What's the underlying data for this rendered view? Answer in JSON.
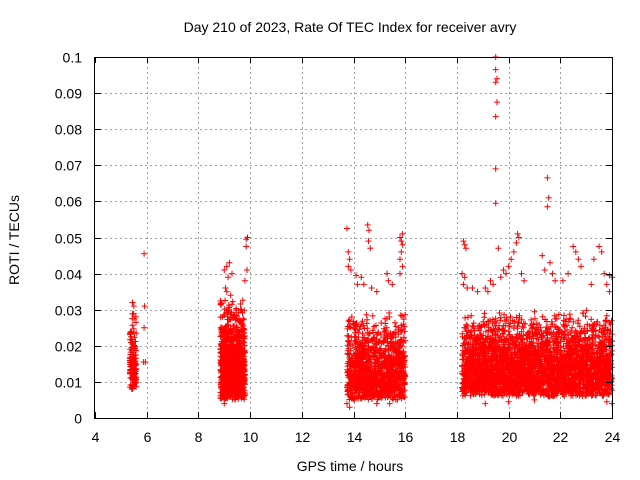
{
  "chart_data": {
    "type": "scatter",
    "title": "Day 210 of 2023, Rate Of TEC Index for receiver avry",
    "xlabel": "GPS time / hours",
    "ylabel": "ROTI / TECUs",
    "xlim": [
      4,
      24
    ],
    "ylim": [
      0,
      0.1
    ],
    "x_ticks": [
      4,
      6,
      8,
      10,
      12,
      14,
      16,
      18,
      20,
      22,
      24
    ],
    "y_ticks": [
      0,
      0.01,
      0.02,
      0.03,
      0.04,
      0.05,
      0.06,
      0.07,
      0.08,
      0.09,
      0.1
    ],
    "x_tick_labels": [
      "4",
      "6",
      "8",
      "10",
      "12",
      "14",
      "16",
      "18",
      "20",
      "22",
      "24"
    ],
    "y_tick_labels": [
      "0",
      "0.01",
      "0.02",
      "0.03",
      "0.04",
      "0.05",
      "0.06",
      "0.07",
      "0.08",
      "0.09",
      "0.1"
    ],
    "grid": true,
    "marker": "plus",
    "series_color": "#ff0000",
    "clusters": [
      {
        "x_range": [
          5.35,
          5.6
        ],
        "y_range": [
          0.008,
          0.03
        ],
        "count": 140
      },
      {
        "x_range": [
          8.85,
          9.8
        ],
        "y_range": [
          0.005,
          0.034
        ],
        "count": 900
      },
      {
        "x_range": [
          13.75,
          16.0
        ],
        "y_range": [
          0.005,
          0.03
        ],
        "count": 1100
      },
      {
        "x_range": [
          18.2,
          24.0
        ],
        "y_range": [
          0.006,
          0.03
        ],
        "count": 3200
      }
    ],
    "points": [
      [
        5.9,
        0.0455
      ],
      [
        5.92,
        0.031
      ],
      [
        5.9,
        0.025
      ],
      [
        5.88,
        0.0155
      ],
      [
        5.95,
        0.0155
      ],
      [
        5.45,
        0.032
      ],
      [
        5.5,
        0.031
      ],
      [
        9.0,
        0.041
      ],
      [
        9.1,
        0.042
      ],
      [
        9.2,
        0.043
      ],
      [
        9.3,
        0.04
      ],
      [
        9.15,
        0.039
      ],
      [
        9.05,
        0.036
      ],
      [
        9.25,
        0.034
      ],
      [
        9.1,
        0.035
      ],
      [
        9.85,
        0.0495
      ],
      [
        9.9,
        0.05
      ],
      [
        9.85,
        0.0475
      ],
      [
        9.88,
        0.041
      ],
      [
        9.8,
        0.038
      ],
      [
        13.75,
        0.0525
      ],
      [
        13.8,
        0.046
      ],
      [
        13.85,
        0.044
      ],
      [
        13.8,
        0.042
      ],
      [
        13.9,
        0.041
      ],
      [
        14.1,
        0.0395
      ],
      [
        14.15,
        0.037
      ],
      [
        14.55,
        0.0535
      ],
      [
        14.6,
        0.052
      ],
      [
        14.58,
        0.049
      ],
      [
        14.65,
        0.047
      ],
      [
        14.3,
        0.039
      ],
      [
        14.4,
        0.037
      ],
      [
        14.7,
        0.036
      ],
      [
        14.9,
        0.035
      ],
      [
        15.3,
        0.04
      ],
      [
        15.35,
        0.038
      ],
      [
        15.5,
        0.037
      ],
      [
        15.8,
        0.05
      ],
      [
        15.85,
        0.049
      ],
      [
        15.9,
        0.051
      ],
      [
        15.9,
        0.048
      ],
      [
        15.85,
        0.046
      ],
      [
        15.8,
        0.044
      ],
      [
        15.9,
        0.042
      ],
      [
        15.8,
        0.04
      ],
      [
        18.25,
        0.049
      ],
      [
        18.3,
        0.048
      ],
      [
        18.35,
        0.047
      ],
      [
        18.2,
        0.04
      ],
      [
        18.3,
        0.039
      ],
      [
        18.25,
        0.037
      ],
      [
        18.4,
        0.036
      ],
      [
        19.5,
        0.1
      ],
      [
        19.5,
        0.0965
      ],
      [
        19.55,
        0.094
      ],
      [
        19.5,
        0.093
      ],
      [
        19.55,
        0.0875
      ],
      [
        19.5,
        0.0835
      ],
      [
        19.5,
        0.069
      ],
      [
        19.5,
        0.0595
      ],
      [
        19.6,
        0.047
      ],
      [
        19.3,
        0.038
      ],
      [
        19.4,
        0.037
      ],
      [
        19.7,
        0.039
      ],
      [
        19.8,
        0.041
      ],
      [
        19.9,
        0.04
      ],
      [
        20.0,
        0.042
      ],
      [
        20.1,
        0.044
      ],
      [
        20.2,
        0.046
      ],
      [
        20.3,
        0.0485
      ],
      [
        20.35,
        0.051
      ],
      [
        20.4,
        0.05
      ],
      [
        20.5,
        0.04
      ],
      [
        20.6,
        0.038
      ],
      [
        21.3,
        0.045
      ],
      [
        21.4,
        0.041
      ],
      [
        21.5,
        0.0665
      ],
      [
        21.55,
        0.061
      ],
      [
        21.5,
        0.0585
      ],
      [
        21.6,
        0.043
      ],
      [
        21.7,
        0.04
      ],
      [
        21.8,
        0.038
      ],
      [
        22.3,
        0.04
      ],
      [
        22.5,
        0.0475
      ],
      [
        22.6,
        0.046
      ],
      [
        22.7,
        0.044
      ],
      [
        22.8,
        0.042
      ],
      [
        23.3,
        0.044
      ],
      [
        23.5,
        0.0475
      ],
      [
        23.6,
        0.046
      ],
      [
        23.7,
        0.04
      ],
      [
        23.9,
        0.0395
      ],
      [
        24.0,
        0.039
      ],
      [
        23.9,
        0.035
      ],
      [
        23.8,
        0.037
      ],
      [
        23.2,
        0.037
      ],
      [
        22.1,
        0.038
      ],
      [
        18.6,
        0.036
      ],
      [
        18.8,
        0.035
      ],
      [
        19.1,
        0.036
      ],
      [
        19.2,
        0.035
      ],
      [
        13.75,
        0.004
      ],
      [
        13.85,
        0.003
      ],
      [
        14.9,
        0.004
      ],
      [
        15.4,
        0.004
      ],
      [
        9.0,
        0.004
      ],
      [
        19.1,
        0.004
      ],
      [
        20.0,
        0.0045
      ],
      [
        21.0,
        0.005
      ],
      [
        23.8,
        0.0045
      ],
      [
        24.0,
        0.004
      ]
    ]
  }
}
